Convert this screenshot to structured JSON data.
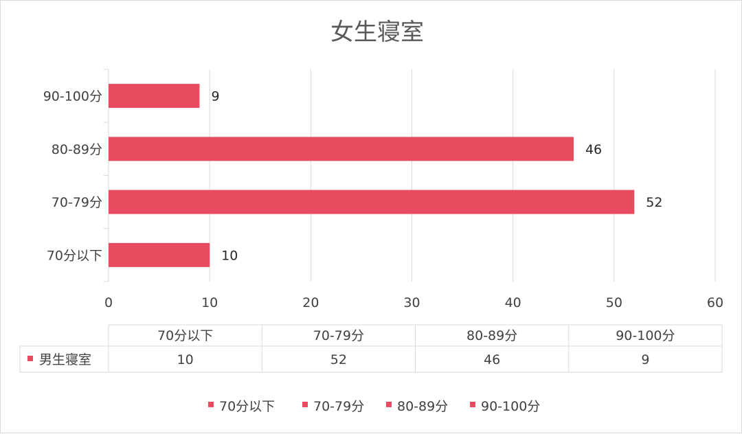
{
  "chart_data": {
    "type": "bar",
    "orientation": "horizontal",
    "title": "女生寝室",
    "categories": [
      "70分以下",
      "70-79分",
      "80-89分",
      "90-100分"
    ],
    "series": [
      {
        "name": "男生寝室",
        "values": [
          10,
          52,
          46,
          9
        ]
      }
    ],
    "xlim": [
      0,
      60
    ],
    "x_ticks": [
      "0",
      "10",
      "20",
      "30",
      "40",
      "50",
      "60"
    ],
    "data_labels": [
      "10",
      "52",
      "46",
      "9"
    ],
    "grid": true,
    "legend_position": "bottom",
    "legend_entries": [
      "70分以下",
      "70-79分",
      "80-89分",
      "90-100分"
    ],
    "data_table": {
      "headers": [
        "70分以下",
        "70-79分",
        "80-89分",
        "90-100分"
      ],
      "row_label": "男生寝室",
      "row_values": [
        "10",
        "52",
        "46",
        "9"
      ]
    },
    "bar_color": "#e84a5f",
    "grid_color": "#d9d9d9"
  }
}
